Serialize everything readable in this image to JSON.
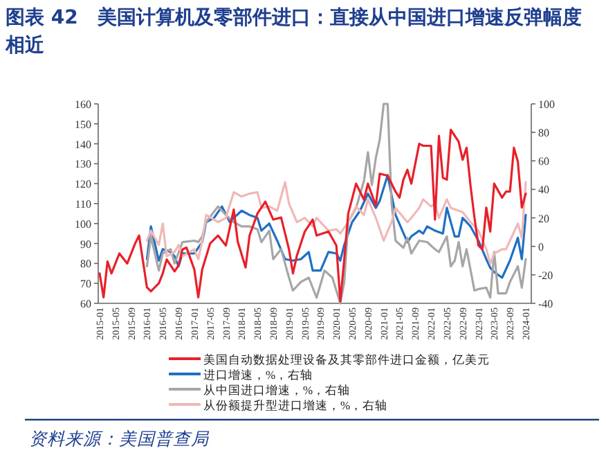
{
  "chart_data": {
    "type": "line",
    "title": "图表 42　美国计算机及零部件进口：直接从中国进口增速反弹幅度相近",
    "annotations": [
      "资料来源：美国普查局"
    ],
    "xlim": [
      "2015-01",
      "2024-01"
    ],
    "xticks": [
      "2015-01",
      "2015-05",
      "2015-09",
      "2016-01",
      "2016-05",
      "2016-09",
      "2017-01",
      "2017-05",
      "2017-09",
      "2018-01",
      "2018-05",
      "2018-09",
      "2019-01",
      "2019-05",
      "2019-09",
      "2020-01",
      "2020-05",
      "2020-09",
      "2021-01",
      "2021-05",
      "2021-09",
      "2022-01",
      "2022-05",
      "2022-09",
      "2023-01",
      "2023-05",
      "2023-09",
      "2024-01"
    ],
    "ylim": [
      60,
      160
    ],
    "yticks": [
      60,
      70,
      80,
      90,
      100,
      110,
      120,
      130,
      140,
      150,
      160
    ],
    "y2lim": [
      -40,
      100
    ],
    "y2ticks": [
      -40,
      -20,
      0,
      20,
      40,
      60,
      80,
      100
    ],
    "legend": "bottom",
    "grid": false,
    "marker": "none",
    "line_style": "solid",
    "series": [
      {
        "name": "美国自动数据处理设备及其零部件进口金额，亿美元",
        "color": "#e8202a",
        "x": [
          "2015-01",
          "2015-02",
          "2015-03",
          "2015-04",
          "2015-06",
          "2015-08",
          "2015-10",
          "2015-11",
          "2016-01",
          "2016-02",
          "2016-04",
          "2016-05",
          "2016-06",
          "2016-08",
          "2016-09",
          "2016-10",
          "2016-11",
          "2017-01",
          "2017-02",
          "2017-03",
          "2017-05",
          "2017-07",
          "2017-09",
          "2017-11",
          "2017-12",
          "2018-02",
          "2018-03",
          "2018-05",
          "2018-07",
          "2018-09",
          "2018-11",
          "2019-01",
          "2019-02",
          "2019-03",
          "2019-05",
          "2019-07",
          "2019-08",
          "2019-11",
          "2020-01",
          "2020-02",
          "2020-03",
          "2020-04",
          "2020-06",
          "2020-08",
          "2020-09",
          "2020-11",
          "2020-12",
          "2021-02",
          "2021-04",
          "2021-05",
          "2021-06",
          "2021-07",
          "2021-08",
          "2021-10",
          "2021-11",
          "2022-01",
          "2022-02",
          "2022-03",
          "2022-04",
          "2022-05",
          "2022-06",
          "2022-08",
          "2022-09",
          "2022-10",
          "2022-11",
          "2022-12",
          "2023-01",
          "2023-02",
          "2023-03",
          "2023-04",
          "2023-05",
          "2023-07",
          "2023-08",
          "2023-09",
          "2023-10",
          "2023-11",
          "2023-12",
          "2024-01"
        ],
        "values": [
          75,
          63,
          81,
          75,
          85,
          80,
          90,
          94,
          68,
          66,
          70,
          75,
          82,
          76,
          79,
          87,
          88,
          77,
          63,
          77,
          90,
          94,
          89,
          107,
          91,
          78,
          94,
          105,
          111,
          102,
          103,
          87,
          75,
          84,
          96,
          102,
          94,
          96,
          89,
          61,
          82,
          105,
          120,
          112,
          120,
          109,
          125,
          124,
          116,
          113,
          122,
          127,
          120,
          140,
          139,
          139,
          102,
          144,
          123,
          122,
          147,
          141,
          132,
          138,
          119,
          103,
          89,
          87,
          108,
          96,
          120,
          113,
          116,
          116,
          138,
          131,
          108,
          115
        ]
      },
      {
        "name": "进口增速，%，右轴",
        "color": "#1f6fc5",
        "axis": "y2",
        "x": [
          "2016-01",
          "2016-02",
          "2016-04",
          "2016-05",
          "2016-07",
          "2016-08",
          "2016-09",
          "2016-10",
          "2017-01",
          "2017-03",
          "2017-04",
          "2017-06",
          "2017-08",
          "2017-10",
          "2017-11",
          "2018-01",
          "2018-03",
          "2018-05",
          "2018-06",
          "2018-08",
          "2018-10",
          "2018-12",
          "2019-02",
          "2019-04",
          "2019-06",
          "2019-07",
          "2019-09",
          "2019-11",
          "2020-01",
          "2020-02",
          "2020-03",
          "2020-05",
          "2020-07",
          "2020-09",
          "2020-11",
          "2020-12",
          "2021-02",
          "2021-04",
          "2021-07",
          "2021-08",
          "2021-10",
          "2021-11",
          "2021-12",
          "2022-02",
          "2022-04",
          "2022-05",
          "2022-07",
          "2022-08",
          "2022-09",
          "2022-11",
          "2023-01",
          "2023-03",
          "2023-04",
          "2023-05",
          "2023-07",
          "2023-09",
          "2023-10",
          "2023-11",
          "2023-12",
          "2024-01"
        ],
        "values": [
          -9,
          14,
          -10,
          -2,
          -4,
          -7,
          -14,
          -5,
          -5,
          3,
          17,
          20,
          28,
          17,
          20,
          25,
          22,
          20,
          11,
          16,
          4,
          -9,
          -10,
          -9,
          -4,
          -17,
          -17,
          -4,
          -5,
          -10,
          1,
          17,
          25,
          37,
          27,
          32,
          50,
          22,
          3,
          7,
          11,
          9,
          14,
          11,
          9,
          27,
          7,
          7,
          20,
          14,
          4,
          -9,
          -15,
          -18,
          -22,
          -10,
          -2,
          6,
          -9,
          22
        ]
      },
      {
        "name": "从中国进口增速，%，右轴",
        "color": "#a6a6a6",
        "axis": "y2",
        "x": [
          "2016-01",
          "2016-02",
          "2016-04",
          "2016-05",
          "2016-07",
          "2016-08",
          "2016-10",
          "2017-01",
          "2017-02",
          "2017-03",
          "2017-04",
          "2017-07",
          "2017-09",
          "2017-11",
          "2018-01",
          "2018-03",
          "2018-05",
          "2018-06",
          "2018-08",
          "2018-09",
          "2018-11",
          "2019-01",
          "2019-02",
          "2019-04",
          "2019-06",
          "2019-08",
          "2019-10",
          "2019-12",
          "2020-02",
          "2020-03",
          "2020-04",
          "2020-06",
          "2020-08",
          "2020-09",
          "2020-10",
          "2020-11",
          "2020-12",
          "2021-01",
          "2021-02",
          "2021-03",
          "2021-04",
          "2021-06",
          "2021-07",
          "2021-08",
          "2021-10",
          "2021-12",
          "2022-02",
          "2022-03",
          "2022-05",
          "2022-06",
          "2022-07",
          "2022-08",
          "2022-09",
          "2022-10",
          "2022-12",
          "2023-01",
          "2023-03",
          "2023-04",
          "2023-05",
          "2023-06",
          "2023-08",
          "2023-09",
          "2023-11",
          "2023-12",
          "2024-01"
        ],
        "values": [
          -14,
          7,
          -17,
          -5,
          -2,
          -12,
          3,
          4,
          3,
          7,
          17,
          28,
          22,
          17,
          14,
          14,
          12,
          3,
          11,
          -9,
          -2,
          -22,
          -31,
          -25,
          -22,
          -36,
          -17,
          -22,
          -40,
          -25,
          17,
          27,
          46,
          66,
          43,
          62,
          75,
          100,
          100,
          30,
          4,
          -1,
          6,
          -5,
          4,
          3,
          -2,
          -4,
          7,
          -14,
          -10,
          3,
          -14,
          -2,
          -31,
          -30,
          -29,
          -36,
          -4,
          -33,
          -33,
          -25,
          -14,
          -29,
          -9
        ]
      },
      {
        "name": "从份额提升型进口增速，%，右轴",
        "color": "#f0b8b8",
        "axis": "y2",
        "x": [
          "2016-01",
          "2016-02",
          "2016-04",
          "2016-05",
          "2016-06",
          "2016-08",
          "2016-09",
          "2016-10",
          "2017-01",
          "2017-02",
          "2017-03",
          "2017-04",
          "2017-07",
          "2017-09",
          "2017-11",
          "2018-01",
          "2018-03",
          "2018-05",
          "2018-06",
          "2018-08",
          "2018-10",
          "2018-12",
          "2019-01",
          "2019-03",
          "2019-05",
          "2019-07",
          "2019-08",
          "2019-11",
          "2020-01",
          "2020-02",
          "2020-04",
          "2020-06",
          "2020-08",
          "2020-09",
          "2020-11",
          "2021-01",
          "2021-03",
          "2021-04",
          "2021-07",
          "2021-08",
          "2021-10",
          "2021-11",
          "2022-01",
          "2022-02",
          "2022-03",
          "2022-05",
          "2022-06",
          "2022-09",
          "2022-11",
          "2023-01",
          "2023-03",
          "2023-04",
          "2023-05",
          "2023-07",
          "2023-08",
          "2023-09",
          "2023-11",
          "2023-12",
          "2024-01"
        ],
        "values": [
          4,
          11,
          1,
          16,
          -7,
          -4,
          1,
          -7,
          -2,
          -9,
          4,
          22,
          17,
          20,
          38,
          35,
          37,
          38,
          27,
          28,
          25,
          45,
          30,
          17,
          20,
          14,
          20,
          11,
          12,
          9,
          17,
          28,
          22,
          33,
          20,
          4,
          17,
          27,
          17,
          20,
          27,
          33,
          28,
          30,
          20,
          33,
          27,
          24,
          17,
          11,
          -2,
          -12,
          -5,
          -2,
          -2,
          4,
          16,
          6,
          45
        ]
      }
    ]
  }
}
